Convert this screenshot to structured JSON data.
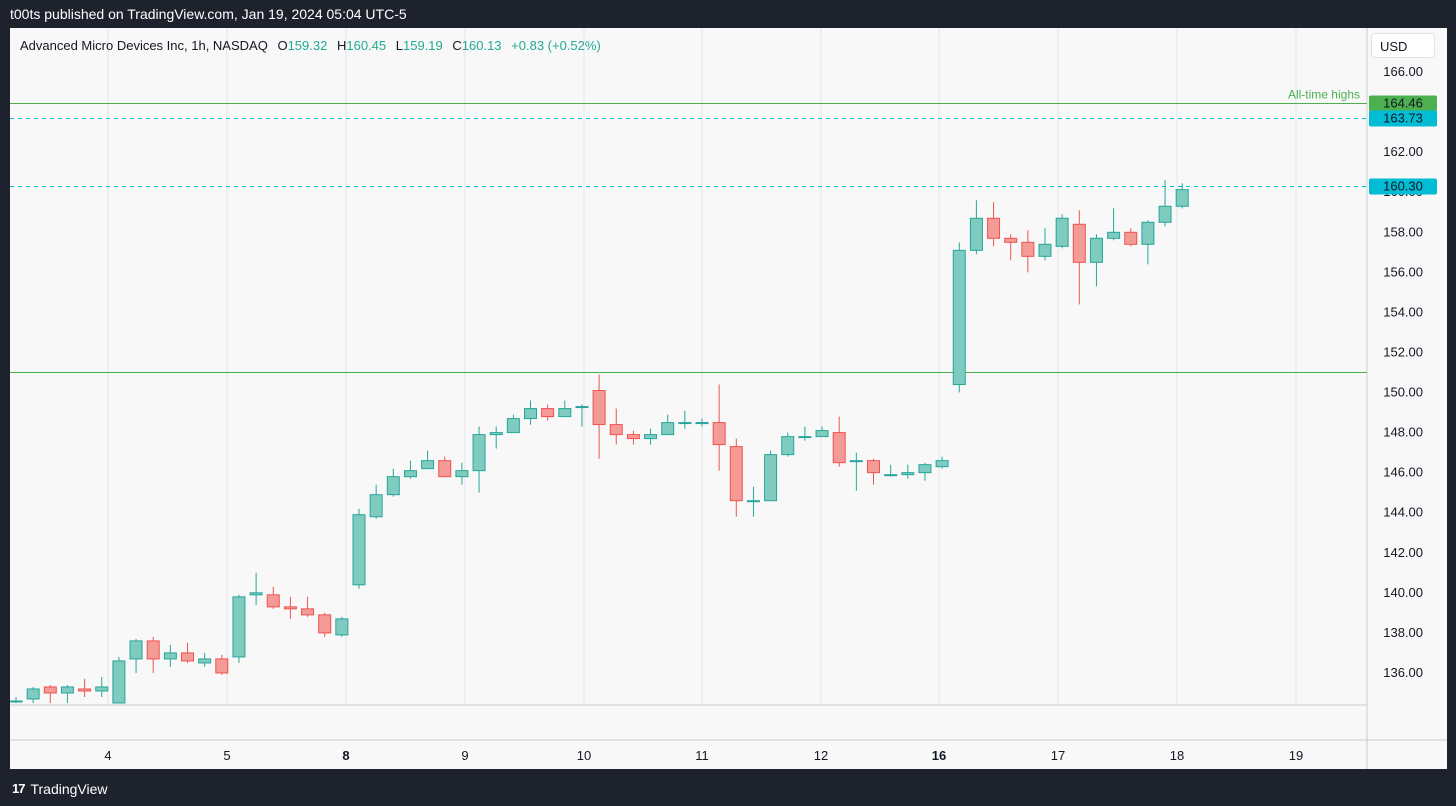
{
  "header": {
    "publish_line": "t00ts published on TradingView.com, Jan 19, 2024 05:04 UTC-5"
  },
  "legend": {
    "symbol": "Advanced Micro Devices Inc, 1h, NASDAQ",
    "o_label": "O",
    "o_value": "159.32",
    "h_label": "H",
    "h_value": "160.45",
    "l_label": "L",
    "l_value": "159.19",
    "c_label": "C",
    "c_value": "160.13",
    "change": "+0.83 (+0.52%)"
  },
  "currency": "USD",
  "footer": {
    "logo": "17",
    "brand": "TradingView"
  },
  "colors": {
    "up": "#26a69a",
    "down": "#ef5350",
    "up_fill": "#7fcbc0",
    "down_fill": "#f49a97",
    "level_line": "#4caf50",
    "dashed": "#00bcd4",
    "grid": "#e0e3eb",
    "text": "#131722"
  },
  "chart_data": {
    "type": "candlestick",
    "title": "Advanced Micro Devices Inc, 1h, NASDAQ",
    "y_range": [
      134.4,
      168.2
    ],
    "y_ticks": [
      "166.00",
      "164.00",
      "162.00",
      "160.00",
      "158.00",
      "156.00",
      "154.00",
      "152.00",
      "150.00",
      "148.00",
      "146.00",
      "144.00",
      "142.00",
      "140.00",
      "138.00",
      "136.00"
    ],
    "x_ticks": [
      {
        "label": "4",
        "bold": false
      },
      {
        "label": "5",
        "bold": false
      },
      {
        "label": "8",
        "bold": true
      },
      {
        "label": "9",
        "bold": false
      },
      {
        "label": "10",
        "bold": false
      },
      {
        "label": "11",
        "bold": false
      },
      {
        "label": "12",
        "bold": false
      },
      {
        "label": "16",
        "bold": true
      },
      {
        "label": "17",
        "bold": false
      },
      {
        "label": "18",
        "bold": false
      },
      {
        "label": "19",
        "bold": false
      }
    ],
    "levels": [
      {
        "price": 164.46,
        "label": "164.46",
        "style": "solid",
        "color": "#4caf50",
        "text": "All-time highs"
      },
      {
        "price": 163.73,
        "label": "163.73",
        "style": "dashed",
        "color": "#00bcd4",
        "text": ""
      },
      {
        "price": 160.3,
        "label": "160.30",
        "style": "dashed",
        "color": "#00bcd4",
        "text": ""
      },
      {
        "price": 151.05,
        "label": "",
        "style": "solid",
        "color": "#4caf50",
        "text": ""
      }
    ],
    "candles": [
      [
        134.6,
        134.8,
        134.5,
        134.6
      ],
      [
        134.7,
        135.3,
        134.5,
        135.2
      ],
      [
        135.3,
        135.4,
        134.5,
        135.0
      ],
      [
        135.0,
        135.4,
        134.5,
        135.3
      ],
      [
        135.2,
        135.7,
        134.8,
        135.1
      ],
      [
        135.1,
        135.8,
        134.8,
        135.3
      ],
      [
        134.5,
        136.8,
        134.5,
        136.6
      ],
      [
        136.7,
        137.7,
        136.0,
        137.6
      ],
      [
        137.6,
        137.8,
        136.0,
        136.7
      ],
      [
        136.7,
        137.4,
        136.3,
        137.0
      ],
      [
        137.0,
        137.5,
        136.5,
        136.6
      ],
      [
        136.5,
        137.0,
        136.3,
        136.7
      ],
      [
        136.7,
        136.9,
        135.9,
        136.0
      ],
      [
        136.8,
        139.9,
        136.5,
        139.8
      ],
      [
        139.9,
        141.0,
        139.4,
        140.0
      ],
      [
        139.9,
        140.3,
        139.2,
        139.3
      ],
      [
        139.3,
        139.8,
        138.7,
        139.2
      ],
      [
        139.2,
        139.8,
        138.8,
        138.9
      ],
      [
        138.9,
        139.0,
        137.8,
        138.0
      ],
      [
        137.9,
        138.8,
        137.8,
        138.7
      ],
      [
        140.4,
        144.2,
        140.2,
        143.9
      ],
      [
        143.8,
        145.4,
        143.7,
        144.9
      ],
      [
        144.9,
        146.2,
        144.8,
        145.8
      ],
      [
        145.8,
        146.6,
        145.7,
        146.1
      ],
      [
        146.2,
        147.1,
        146.2,
        146.6
      ],
      [
        146.6,
        146.8,
        145.8,
        145.8
      ],
      [
        145.8,
        146.5,
        145.4,
        146.1
      ],
      [
        146.1,
        148.3,
        145.0,
        147.9
      ],
      [
        147.9,
        148.3,
        147.2,
        148.0
      ],
      [
        148.0,
        148.9,
        148.0,
        148.7
      ],
      [
        148.7,
        149.6,
        148.4,
        149.2
      ],
      [
        149.2,
        149.4,
        148.6,
        148.8
      ],
      [
        148.8,
        149.6,
        148.8,
        149.2
      ],
      [
        149.3,
        149.4,
        148.3,
        149.3
      ],
      [
        150.1,
        150.9,
        146.7,
        148.4
      ],
      [
        148.4,
        149.2,
        147.4,
        147.9
      ],
      [
        147.9,
        148.1,
        147.4,
        147.7
      ],
      [
        147.7,
        148.2,
        147.4,
        147.9
      ],
      [
        147.9,
        148.9,
        147.9,
        148.5
      ],
      [
        148.5,
        149.1,
        148.2,
        148.5
      ],
      [
        148.5,
        148.7,
        148.3,
        148.5
      ],
      [
        148.5,
        150.4,
        146.1,
        147.4
      ],
      [
        147.3,
        147.7,
        143.8,
        144.6
      ],
      [
        144.6,
        145.3,
        143.8,
        144.6
      ],
      [
        144.6,
        147.1,
        144.6,
        146.9
      ],
      [
        146.9,
        148.0,
        146.8,
        147.8
      ],
      [
        147.8,
        148.3,
        147.6,
        147.8
      ],
      [
        147.8,
        148.3,
        147.8,
        148.1
      ],
      [
        148.0,
        148.8,
        146.3,
        146.5
      ],
      [
        146.6,
        147.0,
        145.1,
        146.6
      ],
      [
        146.6,
        146.7,
        145.4,
        146.0
      ],
      [
        145.9,
        146.4,
        145.8,
        145.9
      ],
      [
        145.9,
        146.4,
        145.7,
        146.0
      ],
      [
        146.0,
        146.5,
        145.6,
        146.4
      ],
      [
        146.3,
        146.8,
        146.2,
        146.6
      ],
      [
        150.4,
        157.5,
        150.0,
        157.1
      ],
      [
        157.1,
        159.6,
        156.9,
        158.7
      ],
      [
        158.7,
        159.5,
        157.3,
        157.7
      ],
      [
        157.7,
        157.9,
        156.6,
        157.5
      ],
      [
        157.5,
        158.1,
        156.0,
        156.8
      ],
      [
        156.8,
        158.2,
        156.6,
        157.4
      ],
      [
        157.3,
        158.9,
        157.2,
        158.7
      ],
      [
        158.4,
        159.1,
        154.4,
        156.5
      ],
      [
        156.5,
        157.9,
        155.3,
        157.7
      ],
      [
        157.7,
        159.2,
        157.6,
        158.0
      ],
      [
        158.0,
        158.2,
        157.3,
        157.4
      ],
      [
        157.4,
        158.6,
        156.4,
        158.5
      ],
      [
        158.5,
        160.6,
        158.3,
        159.3
      ],
      [
        159.3,
        160.45,
        159.19,
        160.13
      ]
    ]
  }
}
